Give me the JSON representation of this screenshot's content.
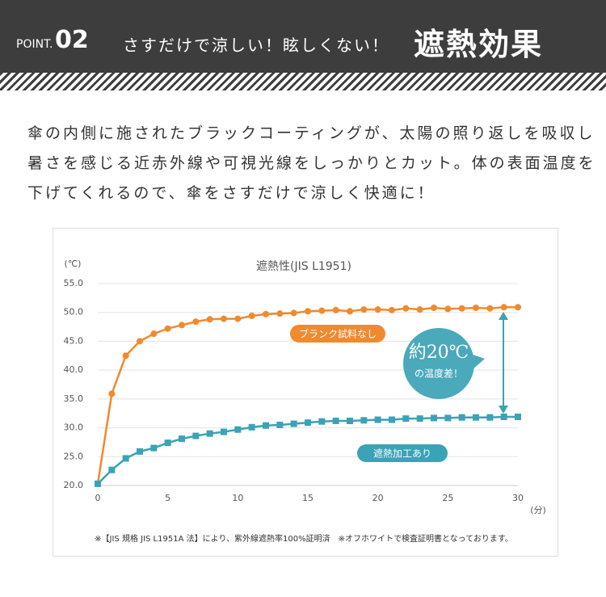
{
  "header": {
    "point_label": "POINT.",
    "point_number": "02",
    "title": "さすだけで涼しい！眩しくない！",
    "title_bold": "遮熱効果"
  },
  "description": [
    "傘の内側に施されたブラックコーティングが、太陽の照り返しを吸収し",
    "暑さを感じる近赤外線や可視光線をしっかりとカット。体の表面温度を",
    "下げてくれるので、傘をさすだけで涼しく快適に！"
  ],
  "chart_data": {
    "type": "line",
    "title": "遮熱性(JIS L1951)",
    "y_label": "(℃)",
    "x_label": "(分)",
    "x": [
      0,
      1,
      2,
      3,
      4,
      5,
      6,
      7,
      8,
      9,
      10,
      11,
      12,
      13,
      14,
      15,
      16,
      17,
      18,
      19,
      20,
      21,
      22,
      23,
      24,
      25,
      26,
      27,
      28,
      29,
      30
    ],
    "series": [
      {
        "name": "ブランク試料なし",
        "color": "#f08a2e",
        "marker": "circle",
        "values": [
          20.3,
          35.9,
          42.5,
          45.0,
          46.3,
          47.2,
          47.8,
          48.4,
          48.8,
          48.9,
          48.9,
          49.4,
          49.7,
          49.8,
          49.9,
          50.2,
          50.3,
          50.4,
          50.2,
          50.5,
          50.5,
          50.4,
          50.7,
          50.5,
          50.8,
          50.6,
          50.7,
          50.8,
          50.7,
          50.9,
          50.9
        ]
      },
      {
        "name": "遮熱加工あり",
        "color": "#3aa3b5",
        "marker": "square",
        "values": [
          20.3,
          22.7,
          24.7,
          25.9,
          26.5,
          27.4,
          28.1,
          28.6,
          29.0,
          29.3,
          29.7,
          30.1,
          30.4,
          30.5,
          30.7,
          30.9,
          31.1,
          31.2,
          31.2,
          31.3,
          31.4,
          31.4,
          31.6,
          31.6,
          31.7,
          31.7,
          31.8,
          31.8,
          31.8,
          31.9,
          31.9
        ]
      }
    ],
    "xlim": [
      0,
      30
    ],
    "xticks": [
      0,
      5,
      10,
      15,
      20,
      25,
      30
    ],
    "ylim": [
      20,
      55
    ],
    "yticks": [
      {
        "value": 20,
        "label": "20.0"
      },
      {
        "value": 25,
        "label": "25.0"
      },
      {
        "value": 30,
        "label": "30.0"
      },
      {
        "value": 35,
        "label": "35.0"
      },
      {
        "value": 40,
        "label": "40.0"
      },
      {
        "value": 45,
        "label": "45.0"
      },
      {
        "value": 50,
        "label": "50.0"
      },
      {
        "value": 55,
        "label": "55.0"
      }
    ],
    "grid": true,
    "callout": [
      "約20℃",
      "の温度差！"
    ],
    "footnote": "※【JIS 規格 JIS L1951A 法】により、紫外線遮熱率100%証明済　※オフホワイトで検査証明書となっております。"
  }
}
